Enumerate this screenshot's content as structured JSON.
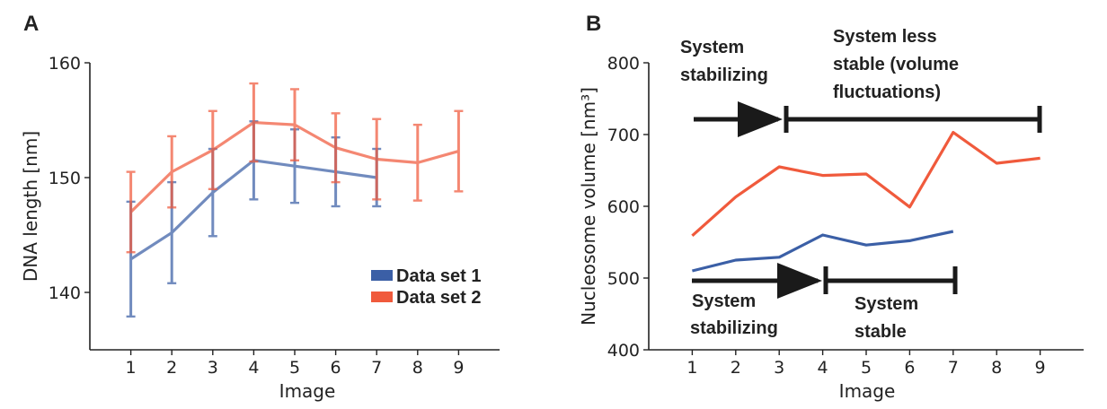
{
  "colors": {
    "series1": "#3b5fa6",
    "series2": "#f05a3c",
    "axis": "#222222",
    "arrow": "#1a1a1a"
  },
  "chart_data": [
    {
      "panel": "A",
      "type": "line",
      "xlabel": "Image",
      "ylabel": "DNA length [nm]",
      "x": [
        1,
        2,
        3,
        4,
        5,
        6,
        7,
        8,
        9
      ],
      "xlim": [
        0,
        10
      ],
      "ylim": [
        135,
        160
      ],
      "yticks": [
        140,
        150,
        160
      ],
      "legend_position": "bottom-right",
      "series": [
        {
          "name": "Data set 1",
          "x": [
            1,
            2,
            3,
            4,
            5,
            6,
            7
          ],
          "values": [
            142.9,
            145.2,
            148.7,
            151.5,
            151.0,
            150.5,
            150.0
          ],
          "error": [
            5.0,
            4.4,
            3.8,
            3.4,
            3.2,
            3.0,
            2.5
          ]
        },
        {
          "name": "Data set 2",
          "x": [
            1,
            2,
            3,
            4,
            5,
            6,
            7,
            8,
            9
          ],
          "values": [
            147.0,
            150.5,
            152.4,
            154.8,
            154.6,
            152.6,
            151.6,
            151.3,
            152.3
          ],
          "error": [
            3.5,
            3.1,
            3.4,
            3.4,
            3.1,
            3.0,
            3.5,
            3.3,
            3.5
          ]
        }
      ]
    },
    {
      "panel": "B",
      "type": "line",
      "xlabel": "Image",
      "ylabel": "Nucleosome volume [nm³]",
      "x": [
        1,
        2,
        3,
        4,
        5,
        6,
        7,
        8,
        9
      ],
      "xlim": [
        0,
        10
      ],
      "ylim": [
        400,
        800
      ],
      "yticks": [
        400,
        500,
        600,
        700,
        800
      ],
      "series": [
        {
          "x": [
            1,
            2,
            3,
            4,
            5,
            6,
            7
          ],
          "values": [
            510,
            525,
            529,
            560,
            546,
            552,
            565
          ]
        },
        {
          "x": [
            1,
            2,
            3,
            4,
            5,
            6,
            7,
            8,
            9
          ],
          "values": [
            559,
            613,
            655,
            643,
            645,
            599,
            703,
            660,
            667
          ]
        }
      ],
      "annotations": {
        "top_left": [
          "System",
          "stabilizing"
        ],
        "top_right": [
          "System less",
          "stable (volume",
          "fluctuations)"
        ],
        "bottom_left": [
          "System",
          "stabilizing"
        ],
        "bottom_right": [
          "System",
          "stable"
        ]
      }
    }
  ]
}
